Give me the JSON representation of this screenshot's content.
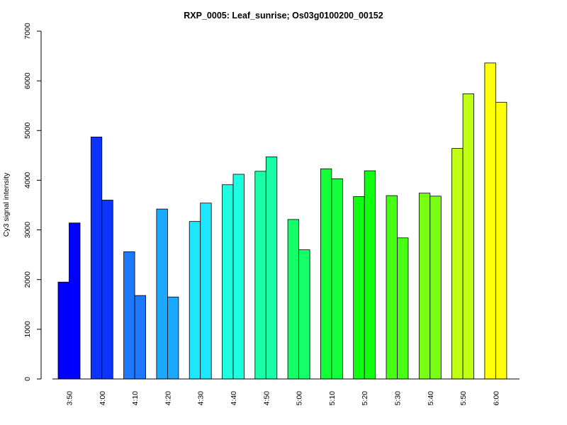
{
  "chart_data": {
    "type": "bar",
    "title": "RXP_0005: Leaf_sunrise; Os03g0100200_00152",
    "xlabel": "",
    "ylabel": "Cy3 signal intensity",
    "ylim": [
      0,
      7000
    ],
    "yticks": [
      0,
      1000,
      2000,
      3000,
      4000,
      5000,
      6000,
      7000
    ],
    "ytick_labels": [
      "0",
      "1000",
      "2000",
      "3000",
      "4000",
      "5000",
      "6000",
      "7000"
    ],
    "grid": false,
    "legend": "none",
    "categories": [
      "3:50",
      "4:00",
      "4:10",
      "4:20",
      "4:30",
      "4:40",
      "4:50",
      "5:00",
      "5:10",
      "5:20",
      "5:30",
      "5:40",
      "5:50",
      "6:00"
    ],
    "colors": [
      "#0000FF",
      "#0D34FF",
      "#1C78FF",
      "#1BA9FF",
      "#1FE6FF",
      "#1EFFE0",
      "#18FFA8",
      "#15FF68",
      "#12FF3A",
      "#10FF10",
      "#46FF12",
      "#78FF14",
      "#C0FF14",
      "#FFFF0A"
    ],
    "series": [
      {
        "values": [
          1950,
          4870,
          2560,
          3420,
          3170,
          3910,
          4180,
          3210,
          4230,
          3670,
          3690,
          3740,
          4640,
          6360
        ]
      },
      {
        "values": [
          3140,
          3600,
          1680,
          1650,
          3540,
          4120,
          4470,
          2600,
          4030,
          4190,
          2840,
          3680,
          5740,
          5570
        ]
      }
    ]
  }
}
